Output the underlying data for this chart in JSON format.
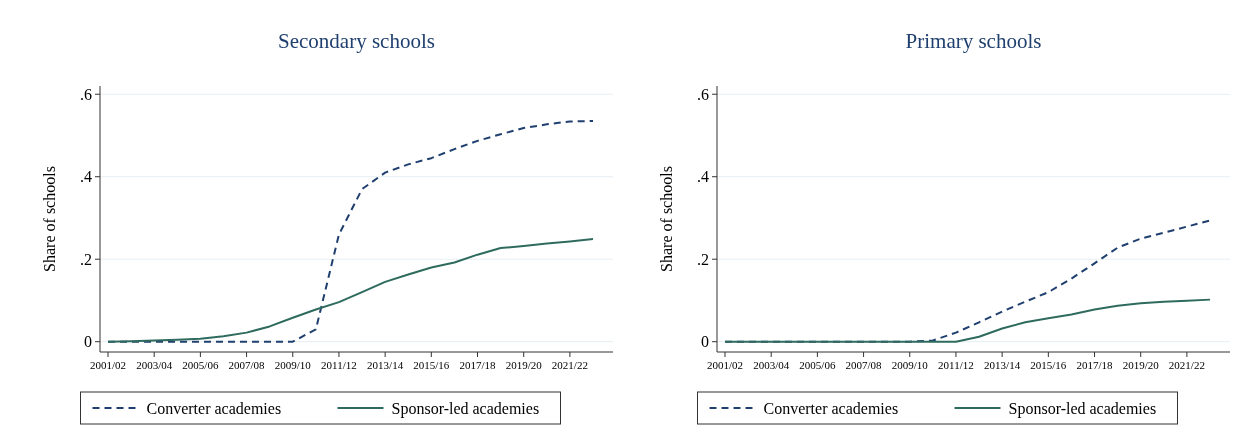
{
  "chart_data": [
    {
      "type": "line",
      "title": "Secondary schools",
      "ylabel": "Share of schools",
      "categories": [
        "2001/02",
        null,
        "2003/04",
        null,
        "2005/06",
        null,
        "2007/08",
        null,
        "2009/10",
        null,
        "2011/12",
        null,
        "2013/14",
        null,
        "2015/16",
        null,
        "2017/18",
        null,
        "2019/20",
        null,
        "2021/22",
        null
      ],
      "ylim": [
        -0.025,
        0.62
      ],
      "yticks": [
        {
          "value": 0,
          "label": "0"
        },
        {
          "value": 0.2,
          "label": ".2"
        },
        {
          "value": 0.4,
          "label": ".4"
        },
        {
          "value": 0.6,
          "label": ".6"
        }
      ],
      "grid": "y",
      "legend": "bottom",
      "marker": "none",
      "series": [
        {
          "name": "Converter academies",
          "color": "#1f3f6e",
          "line_style": "dashed",
          "values": [
            0,
            0,
            0,
            0,
            0,
            0,
            0,
            0,
            0,
            0.03,
            0.26,
            0.37,
            0.41,
            0.43,
            0.445,
            0.467,
            0.487,
            0.503,
            0.518,
            0.527,
            0.534,
            0.535
          ]
        },
        {
          "name": "Sponsor-led academies",
          "color": "#2e6b5e",
          "line_style": "solid",
          "values": [
            0,
            0.001,
            0.003,
            0.005,
            0.007,
            0.013,
            0.022,
            0.037,
            0.058,
            0.078,
            0.096,
            0.12,
            0.145,
            0.163,
            0.18,
            0.192,
            0.211,
            0.227,
            0.232,
            0.238,
            0.243,
            0.249
          ]
        }
      ]
    },
    {
      "type": "line",
      "title": "Primary schools",
      "ylabel": "Share of schools",
      "categories": [
        "2001/02",
        null,
        "2003/04",
        null,
        "2005/06",
        null,
        "2007/08",
        null,
        "2009/10",
        null,
        "2011/12",
        null,
        "2013/14",
        null,
        "2015/16",
        null,
        "2017/18",
        null,
        "2019/20",
        null,
        "2021/22",
        null
      ],
      "ylim": [
        -0.025,
        0.62
      ],
      "yticks": [
        {
          "value": 0,
          "label": "0"
        },
        {
          "value": 0.2,
          "label": ".2"
        },
        {
          "value": 0.4,
          "label": ".4"
        },
        {
          "value": 0.6,
          "label": ".6"
        }
      ],
      "grid": "y",
      "legend": "bottom",
      "marker": "none",
      "series": [
        {
          "name": "Converter academies",
          "color": "#1f3f6e",
          "line_style": "dashed",
          "values": [
            0,
            0,
            0,
            0,
            0,
            0,
            0,
            0,
            0,
            0.003,
            0.022,
            0.047,
            0.073,
            0.097,
            0.12,
            0.153,
            0.19,
            0.228,
            0.25,
            0.264,
            0.279,
            0.294
          ]
        },
        {
          "name": "Sponsor-led academies",
          "color": "#2e6b5e",
          "line_style": "solid",
          "values": [
            0,
            0,
            0,
            0,
            0,
            0,
            0,
            0,
            0,
            0,
            0,
            0.012,
            0.032,
            0.047,
            0.057,
            0.066,
            0.078,
            0.087,
            0.093,
            0.097,
            0.099,
            0.102
          ]
        }
      ]
    }
  ]
}
